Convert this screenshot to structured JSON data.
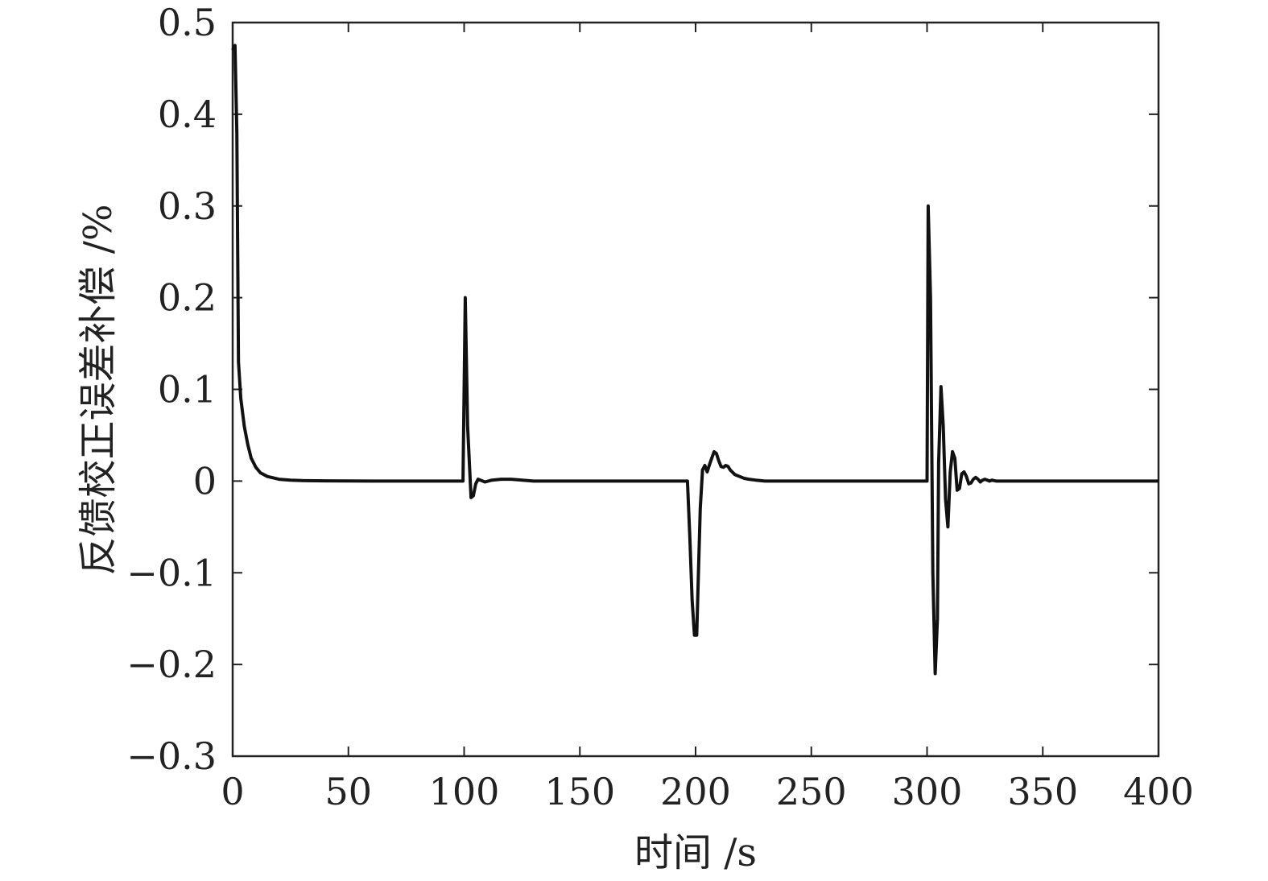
{
  "chart_data": {
    "type": "line",
    "title": "",
    "xlabel": "时间 /s",
    "ylabel": "反馈校正误差补偿 /%",
    "xlim": [
      0,
      400
    ],
    "ylim": [
      -0.3,
      0.5
    ],
    "xticks": [
      0,
      50,
      100,
      150,
      200,
      250,
      300,
      350,
      400
    ],
    "xtick_labels": [
      "0",
      "50",
      "100",
      "150",
      "200",
      "250",
      "300",
      "350",
      "400"
    ],
    "yticks": [
      -0.3,
      -0.2,
      -0.1,
      0,
      0.1,
      0.2,
      0.3,
      0.4,
      0.5
    ],
    "ytick_labels": [
      "−0.3",
      "−0.2",
      "−0.1",
      "0",
      "0.1",
      "0.2",
      "0.3",
      "0.4",
      "0.5"
    ],
    "grid": false,
    "legend": "none",
    "line_color": "#111111",
    "series": [
      {
        "x": [
          0,
          1,
          1.8,
          2.5,
          3.5,
          5,
          6.5,
          8,
          10,
          12,
          15,
          20,
          25,
          30,
          40,
          50,
          60,
          80,
          99.5,
          100.5,
          101.5,
          103,
          104,
          105,
          106,
          107,
          109,
          112,
          116,
          120,
          130,
          150,
          195,
          196.5,
          197.5,
          198.5,
          199.5,
          200.5,
          201,
          202,
          203,
          204,
          205,
          206,
          207,
          208,
          209,
          210,
          211,
          212,
          213,
          214,
          215,
          217,
          219,
          221,
          223,
          226,
          230,
          300,
          300.5,
          301.5,
          302.5,
          303.5,
          304.5,
          305,
          306,
          307,
          308,
          309,
          310,
          311,
          312,
          313,
          314,
          315,
          316,
          317,
          318,
          319,
          320,
          321,
          322,
          323,
          324,
          325,
          326,
          327,
          328,
          330,
          335,
          400
        ],
        "y": [
          0.47,
          0.475,
          0.38,
          0.13,
          0.09,
          0.06,
          0.04,
          0.025,
          0.015,
          0.009,
          0.005,
          0.002,
          0.001,
          0.0005,
          0.0002,
          0.0001,
          0,
          0,
          0,
          0.2,
          0.06,
          -0.018,
          -0.016,
          -0.003,
          0.002,
          0.001,
          -0.001,
          0.001,
          0.002,
          0.002,
          0,
          0,
          0,
          0,
          -0.06,
          -0.13,
          -0.168,
          -0.168,
          -0.12,
          -0.03,
          0.012,
          0.017,
          0.01,
          0.018,
          0.025,
          0.032,
          0.03,
          0.022,
          0.016,
          0.015,
          0.017,
          0.016,
          0.012,
          0.007,
          0.005,
          0.003,
          0.002,
          0.001,
          0,
          0,
          0.3,
          0.2,
          -0.1,
          -0.21,
          -0.15,
          0.02,
          0.103,
          0.06,
          -0.02,
          -0.05,
          0.01,
          0.032,
          0.025,
          -0.01,
          -0.008,
          0.008,
          0.01,
          0.005,
          -0.003,
          -0.002,
          0.002,
          0.004,
          0.002,
          -0.001,
          0.001,
          0.002,
          0.001,
          0,
          0.001,
          0,
          0,
          0
        ]
      }
    ]
  }
}
